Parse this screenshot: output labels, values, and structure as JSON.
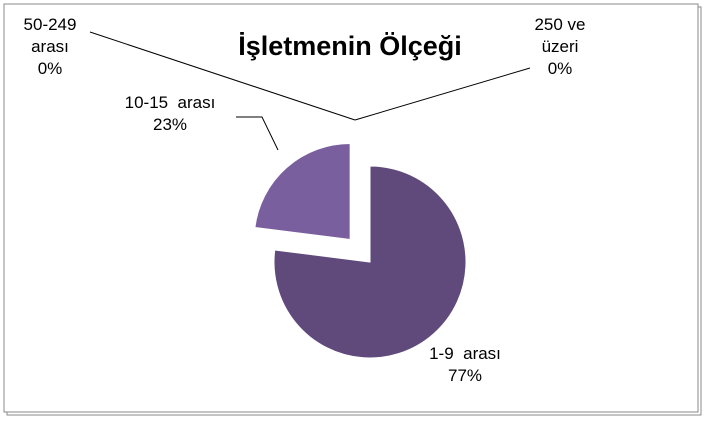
{
  "chart_data": {
    "type": "pie",
    "title": "İşletmenin Ölçeği",
    "categories": [
      "1-9  arası",
      "10-15  arası",
      "50-249 arası",
      "250 ve üzeri"
    ],
    "values": [
      77,
      23,
      0,
      0
    ],
    "value_labels": [
      "77%",
      "23%",
      "0%",
      "0%"
    ],
    "colors": [
      "#5f4a7b",
      "#7a5f9e",
      "#8e79ae",
      "#a797c2"
    ]
  }
}
